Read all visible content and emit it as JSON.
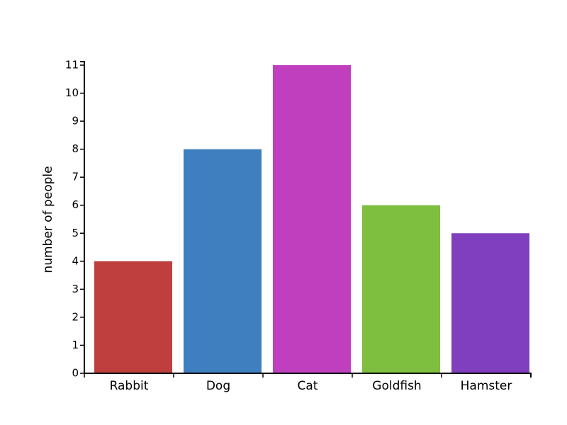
{
  "chart_data": {
    "type": "bar",
    "y_label": "number of people",
    "categories": [
      "Rabbit",
      "Dog",
      "Cat",
      "Goldfish",
      "Hamster"
    ],
    "values": [
      4,
      8,
      11,
      6,
      5
    ],
    "colors": [
      "#bf3f3f",
      "#3f7fbf",
      "#bf3fbf",
      "#7fbf3f",
      "#7f3fbf"
    ],
    "ylim": [
      0,
      11
    ],
    "yticks": [
      0,
      1,
      2,
      3,
      4,
      5,
      6,
      7,
      8,
      9,
      10,
      11
    ]
  }
}
